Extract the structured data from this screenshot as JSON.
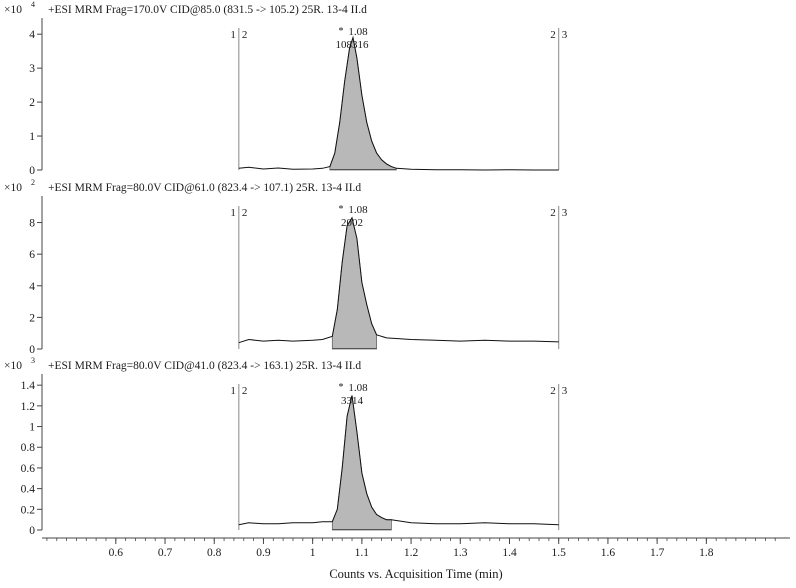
{
  "xaxis": {
    "label": "Counts vs. Acquisition Time (min)",
    "range": [
      0.45,
      1.97
    ],
    "ticks": [
      0.6,
      0.7,
      0.8,
      0.9,
      1,
      1.1,
      1.2,
      1.3,
      1.4,
      1.5,
      1.6,
      1.7,
      1.8
    ],
    "tick_labels": [
      "0.6",
      "0.7",
      "0.8",
      "0.9",
      "1",
      "1.1",
      "1.2",
      "1.3",
      "1.4",
      "1.5",
      "1.6",
      "1.7",
      "1.8"
    ]
  },
  "chart_data": [
    {
      "type": "line",
      "title": "+ESI MRM Frag=170.0V CID@85.0 (831.5 -> 105.2) 25R. 13-4 II.d",
      "scale_prefix": "×10",
      "scale_exp": "4",
      "ylim": [
        0,
        4.3
      ],
      "yticks": [
        0,
        1,
        2,
        3,
        4
      ],
      "ytick_labels": [
        "0",
        "1",
        "2",
        "3",
        "4"
      ],
      "marker_left": "1",
      "marker_left2": "2",
      "marker_right": "2",
      "marker_right2": "3",
      "window": [
        0.85,
        1.5
      ],
      "peak": {
        "rt": 1.08,
        "rt_label": "1.08",
        "area_label": "108316",
        "peak_label_symbol": "*"
      },
      "integrated_region": [
        1.035,
        1.17
      ],
      "x": [
        0.85,
        0.87,
        0.9,
        0.93,
        0.96,
        1.0,
        1.02,
        1.035,
        1.045,
        1.055,
        1.065,
        1.075,
        1.082,
        1.09,
        1.1,
        1.11,
        1.12,
        1.13,
        1.14,
        1.15,
        1.16,
        1.17,
        1.2,
        1.25,
        1.3,
        1.35,
        1.4,
        1.45,
        1.5
      ],
      "y": [
        0.05,
        0.08,
        0.03,
        0.06,
        0.02,
        0.03,
        0.05,
        0.1,
        0.5,
        1.4,
        2.6,
        3.6,
        3.9,
        3.3,
        2.2,
        1.4,
        0.85,
        0.5,
        0.3,
        0.18,
        0.1,
        0.05,
        0.02,
        0.01,
        0.01,
        0.0,
        0.01,
        0.0,
        0.0
      ]
    },
    {
      "type": "line",
      "title": "+ESI MRM Frag=80.0V CID@61.0 (823.4 -> 107.1) 25R. 13-4 II.d",
      "scale_prefix": "×10",
      "scale_exp": "2",
      "ylim": [
        0,
        9.3
      ],
      "yticks": [
        0,
        2,
        4,
        6,
        8
      ],
      "ytick_labels": [
        "0",
        "2",
        "4",
        "6",
        "8"
      ],
      "marker_left": "1",
      "marker_left2": "2",
      "marker_right": "2",
      "marker_right2": "3",
      "window": [
        0.85,
        1.5
      ],
      "peak": {
        "rt": 1.08,
        "rt_label": "1.08",
        "area_label": "2002",
        "peak_label_symbol": "*"
      },
      "integrated_region": [
        1.04,
        1.13
      ],
      "x": [
        0.85,
        0.87,
        0.9,
        0.93,
        0.96,
        1.0,
        1.02,
        1.04,
        1.05,
        1.06,
        1.07,
        1.08,
        1.09,
        1.1,
        1.11,
        1.12,
        1.13,
        1.15,
        1.2,
        1.25,
        1.3,
        1.35,
        1.4,
        1.45,
        1.5
      ],
      "y": [
        0.4,
        0.6,
        0.5,
        0.55,
        0.5,
        0.55,
        0.6,
        0.8,
        2.5,
        5.5,
        7.8,
        8.3,
        7.0,
        4.2,
        2.8,
        1.6,
        0.9,
        0.7,
        0.6,
        0.55,
        0.5,
        0.55,
        0.5,
        0.5,
        0.45
      ]
    },
    {
      "type": "line",
      "title": "+ESI MRM Frag=80.0V CID@41.0 (823.4 -> 163.1) 25R. 13-4 II.d",
      "scale_prefix": "×10",
      "scale_exp": "3",
      "ylim": [
        0,
        1.45
      ],
      "yticks": [
        0,
        0.2,
        0.4,
        0.6,
        0.8,
        1,
        1.2,
        1.4
      ],
      "ytick_labels": [
        "0",
        "0.2",
        "0.4",
        "0.6",
        "0.8",
        "1",
        "1.2",
        "1.4"
      ],
      "marker_left": "1",
      "marker_left2": "2",
      "marker_right": "2",
      "marker_right2": "3",
      "window": [
        0.85,
        1.5
      ],
      "peak": {
        "rt": 1.08,
        "rt_label": "1.08",
        "area_label": "3314",
        "peak_label_symbol": "*"
      },
      "integrated_region": [
        1.04,
        1.16
      ],
      "x": [
        0.85,
        0.87,
        0.9,
        0.93,
        0.96,
        1.0,
        1.02,
        1.04,
        1.05,
        1.06,
        1.07,
        1.08,
        1.09,
        1.1,
        1.11,
        1.12,
        1.13,
        1.14,
        1.15,
        1.16,
        1.2,
        1.25,
        1.3,
        1.35,
        1.4,
        1.45,
        1.5
      ],
      "y": [
        0.05,
        0.07,
        0.06,
        0.06,
        0.07,
        0.07,
        0.08,
        0.08,
        0.2,
        0.6,
        1.1,
        1.3,
        0.95,
        0.55,
        0.35,
        0.22,
        0.15,
        0.12,
        0.1,
        0.1,
        0.07,
        0.06,
        0.06,
        0.07,
        0.06,
        0.06,
        0.05
      ]
    }
  ]
}
